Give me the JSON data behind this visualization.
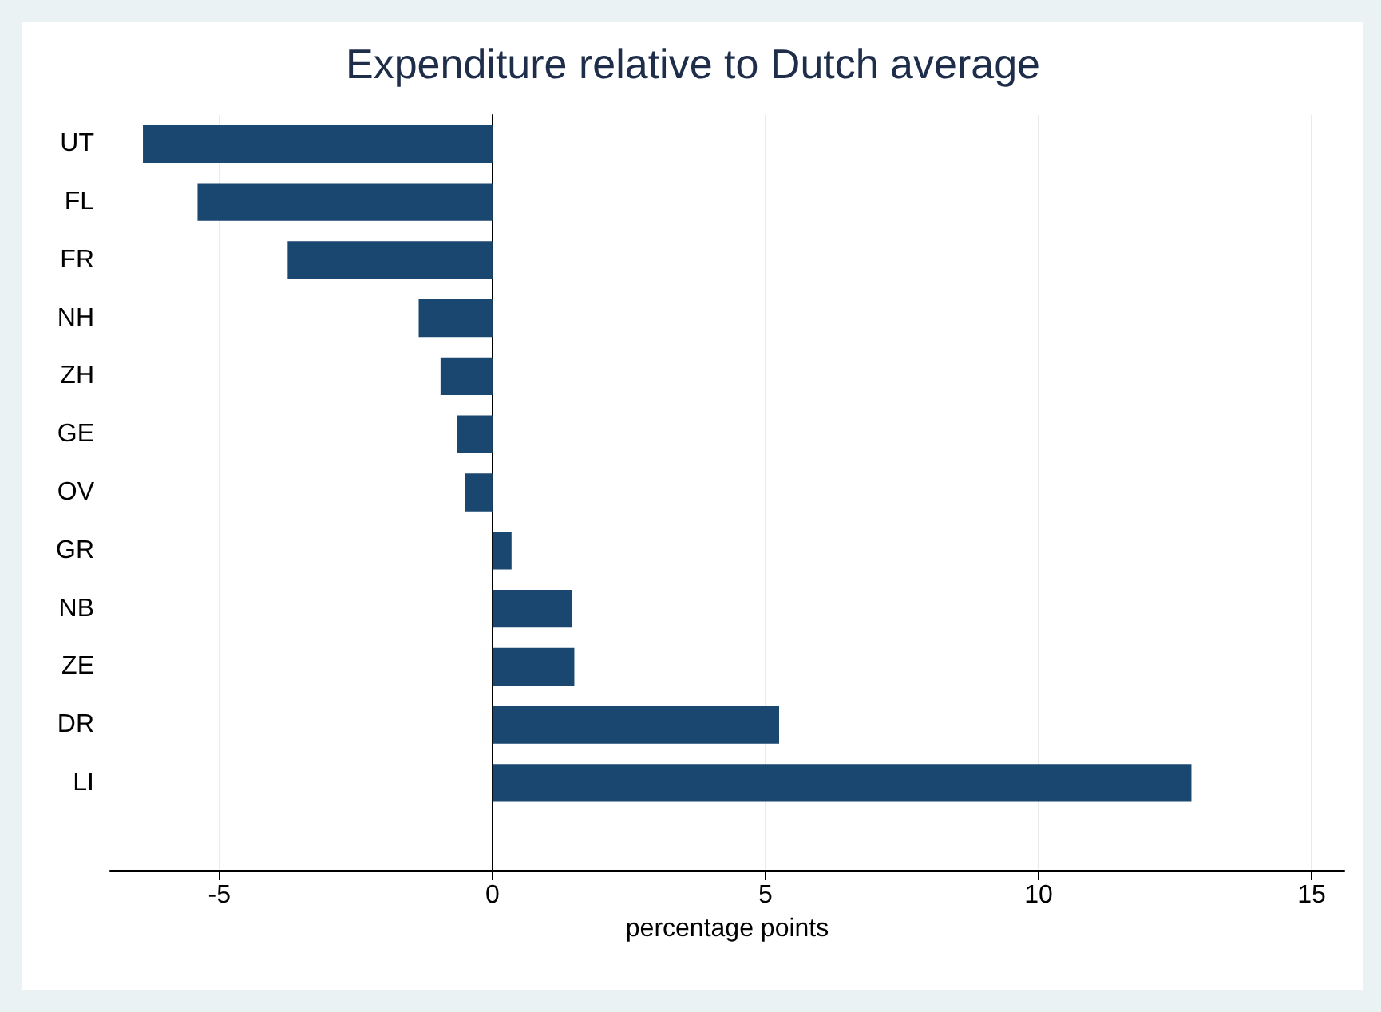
{
  "chart_data": {
    "type": "bar",
    "orientation": "horizontal",
    "title": "Expenditure relative to Dutch average",
    "xlabel": "percentage points",
    "categories": [
      "UT",
      "FL",
      "FR",
      "NH",
      "ZH",
      "GE",
      "OV",
      "GR",
      "NB",
      "ZE",
      "DR",
      "LI"
    ],
    "values": [
      -6.4,
      -5.4,
      -3.75,
      -1.35,
      -0.95,
      -0.65,
      -0.5,
      0.35,
      1.45,
      1.5,
      5.25,
      12.8
    ],
    "color": "#1a476f",
    "xlim": [
      -7,
      15.6
    ],
    "xticks": [
      -5,
      0,
      5,
      10,
      15
    ],
    "grid": "x"
  }
}
